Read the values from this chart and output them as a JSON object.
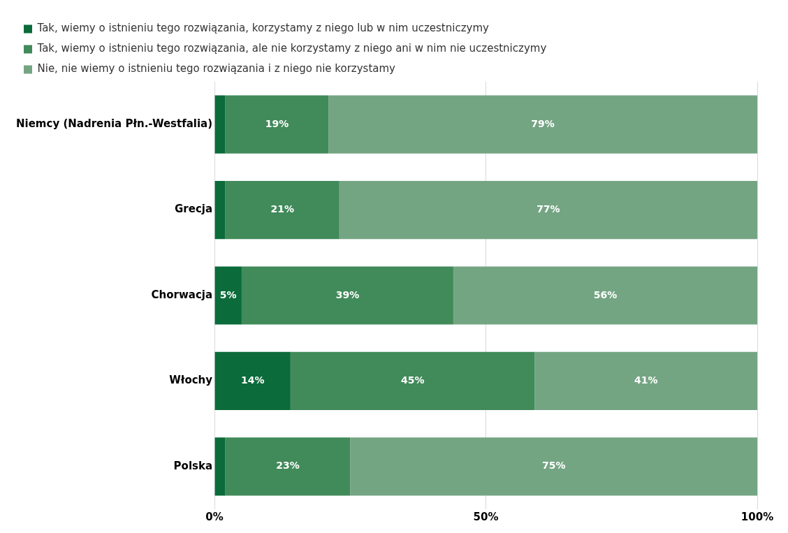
{
  "chart_data": {
    "type": "bar",
    "orientation": "horizontal",
    "stacked": true,
    "legend": "top",
    "grid": "x",
    "categories": [
      "Niemcy (Nadrenia Płn.-Westfalia)",
      "Grecja",
      "Chorwacja",
      "Włochy",
      "Polska"
    ],
    "series": [
      {
        "name": "Tak, wiemy o istnieniu tego rozwiązania, korzystamy z niego lub w nim uczestniczymy",
        "color": "#0b6b3a",
        "values": [
          2,
          2,
          5,
          14,
          2
        ],
        "value_labels": [
          null,
          null,
          "5%",
          "14%",
          null
        ]
      },
      {
        "name": "Tak, wiemy o istnieniu tego rozwiązania, ale nie korzystamy z niego ani w nim nie uczestniczymy",
        "color": "#418a5a",
        "values": [
          19,
          21,
          39,
          45,
          23
        ],
        "value_labels": [
          "19%",
          "21%",
          "39%",
          "45%",
          "23%"
        ]
      },
      {
        "name": "Nie, nie wiemy o istnieniu tego rozwiązania i z niego nie korzystamy",
        "color": "#74a583",
        "values": [
          79,
          77,
          56,
          41,
          75
        ],
        "value_labels": [
          "79%",
          "77%",
          "56%",
          "41%",
          "75%"
        ]
      }
    ],
    "xlim": [
      0,
      100
    ],
    "xticks": [
      {
        "value": 0,
        "label": "0%"
      },
      {
        "value": 50,
        "label": "50%"
      },
      {
        "value": 100,
        "label": "100%"
      }
    ]
  }
}
